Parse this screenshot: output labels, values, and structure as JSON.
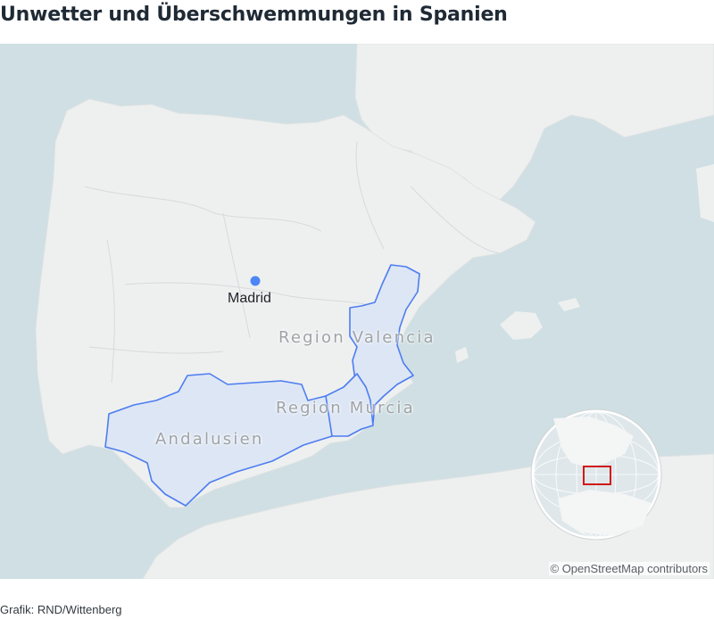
{
  "header": {
    "title": "Unwetter und Überschwemmungen in Spanien"
  },
  "map": {
    "places": [
      {
        "name": "Madrid",
        "type": "city"
      }
    ],
    "regions": [
      {
        "name": "Region Valencia",
        "highlighted": true
      },
      {
        "name": "Region Murcia",
        "highlighted": true
      },
      {
        "name": "Andalusien",
        "highlighted": true
      }
    ],
    "colors": {
      "sea": "#cfdfe3",
      "land": "#eef0f0",
      "region_fill": "#dde6f4",
      "region_stroke": "#4d7df0",
      "city_dot": "#4d86f7",
      "locator_frame": "#d11818"
    },
    "locator_globe": {
      "shown": true,
      "frame_icon": "red-rectangle"
    },
    "attribution": "© OpenStreetMap contributors"
  },
  "footer": {
    "source": "Grafik: RND/Wittenberg"
  }
}
